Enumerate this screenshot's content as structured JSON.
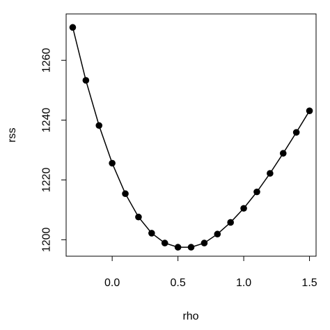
{
  "chart_data": {
    "type": "line",
    "title": "",
    "xlabel": "rho",
    "ylabel": "rss",
    "x_ticks": [
      0.0,
      0.5,
      1.0,
      1.5
    ],
    "x_tick_labels": [
      "0.0",
      "0.5",
      "1.0",
      "1.5"
    ],
    "y_ticks": [
      1200,
      1220,
      1240,
      1260
    ],
    "y_tick_labels": [
      "1200",
      "1220",
      "1240",
      "1260"
    ],
    "xlim": [
      -0.35,
      1.55
    ],
    "ylim": [
      1194.5,
      1275.5
    ],
    "grid": false,
    "markers": "filled-circle",
    "color": "#000000",
    "series": [
      {
        "x": [
          -0.3,
          -0.2,
          -0.1,
          0.0,
          0.1,
          0.2,
          0.3,
          0.4,
          0.5,
          0.6,
          0.7,
          0.8,
          0.9,
          1.0,
          1.1,
          1.2,
          1.3,
          1.4,
          1.5
        ],
        "y": [
          1271.0,
          1253.3,
          1238.2,
          1225.6,
          1215.4,
          1207.6,
          1202.2,
          1198.9,
          1197.5,
          1197.5,
          1198.9,
          1201.9,
          1205.8,
          1210.5,
          1216.0,
          1222.2,
          1228.9,
          1235.9,
          1243.1
        ]
      }
    ]
  }
}
